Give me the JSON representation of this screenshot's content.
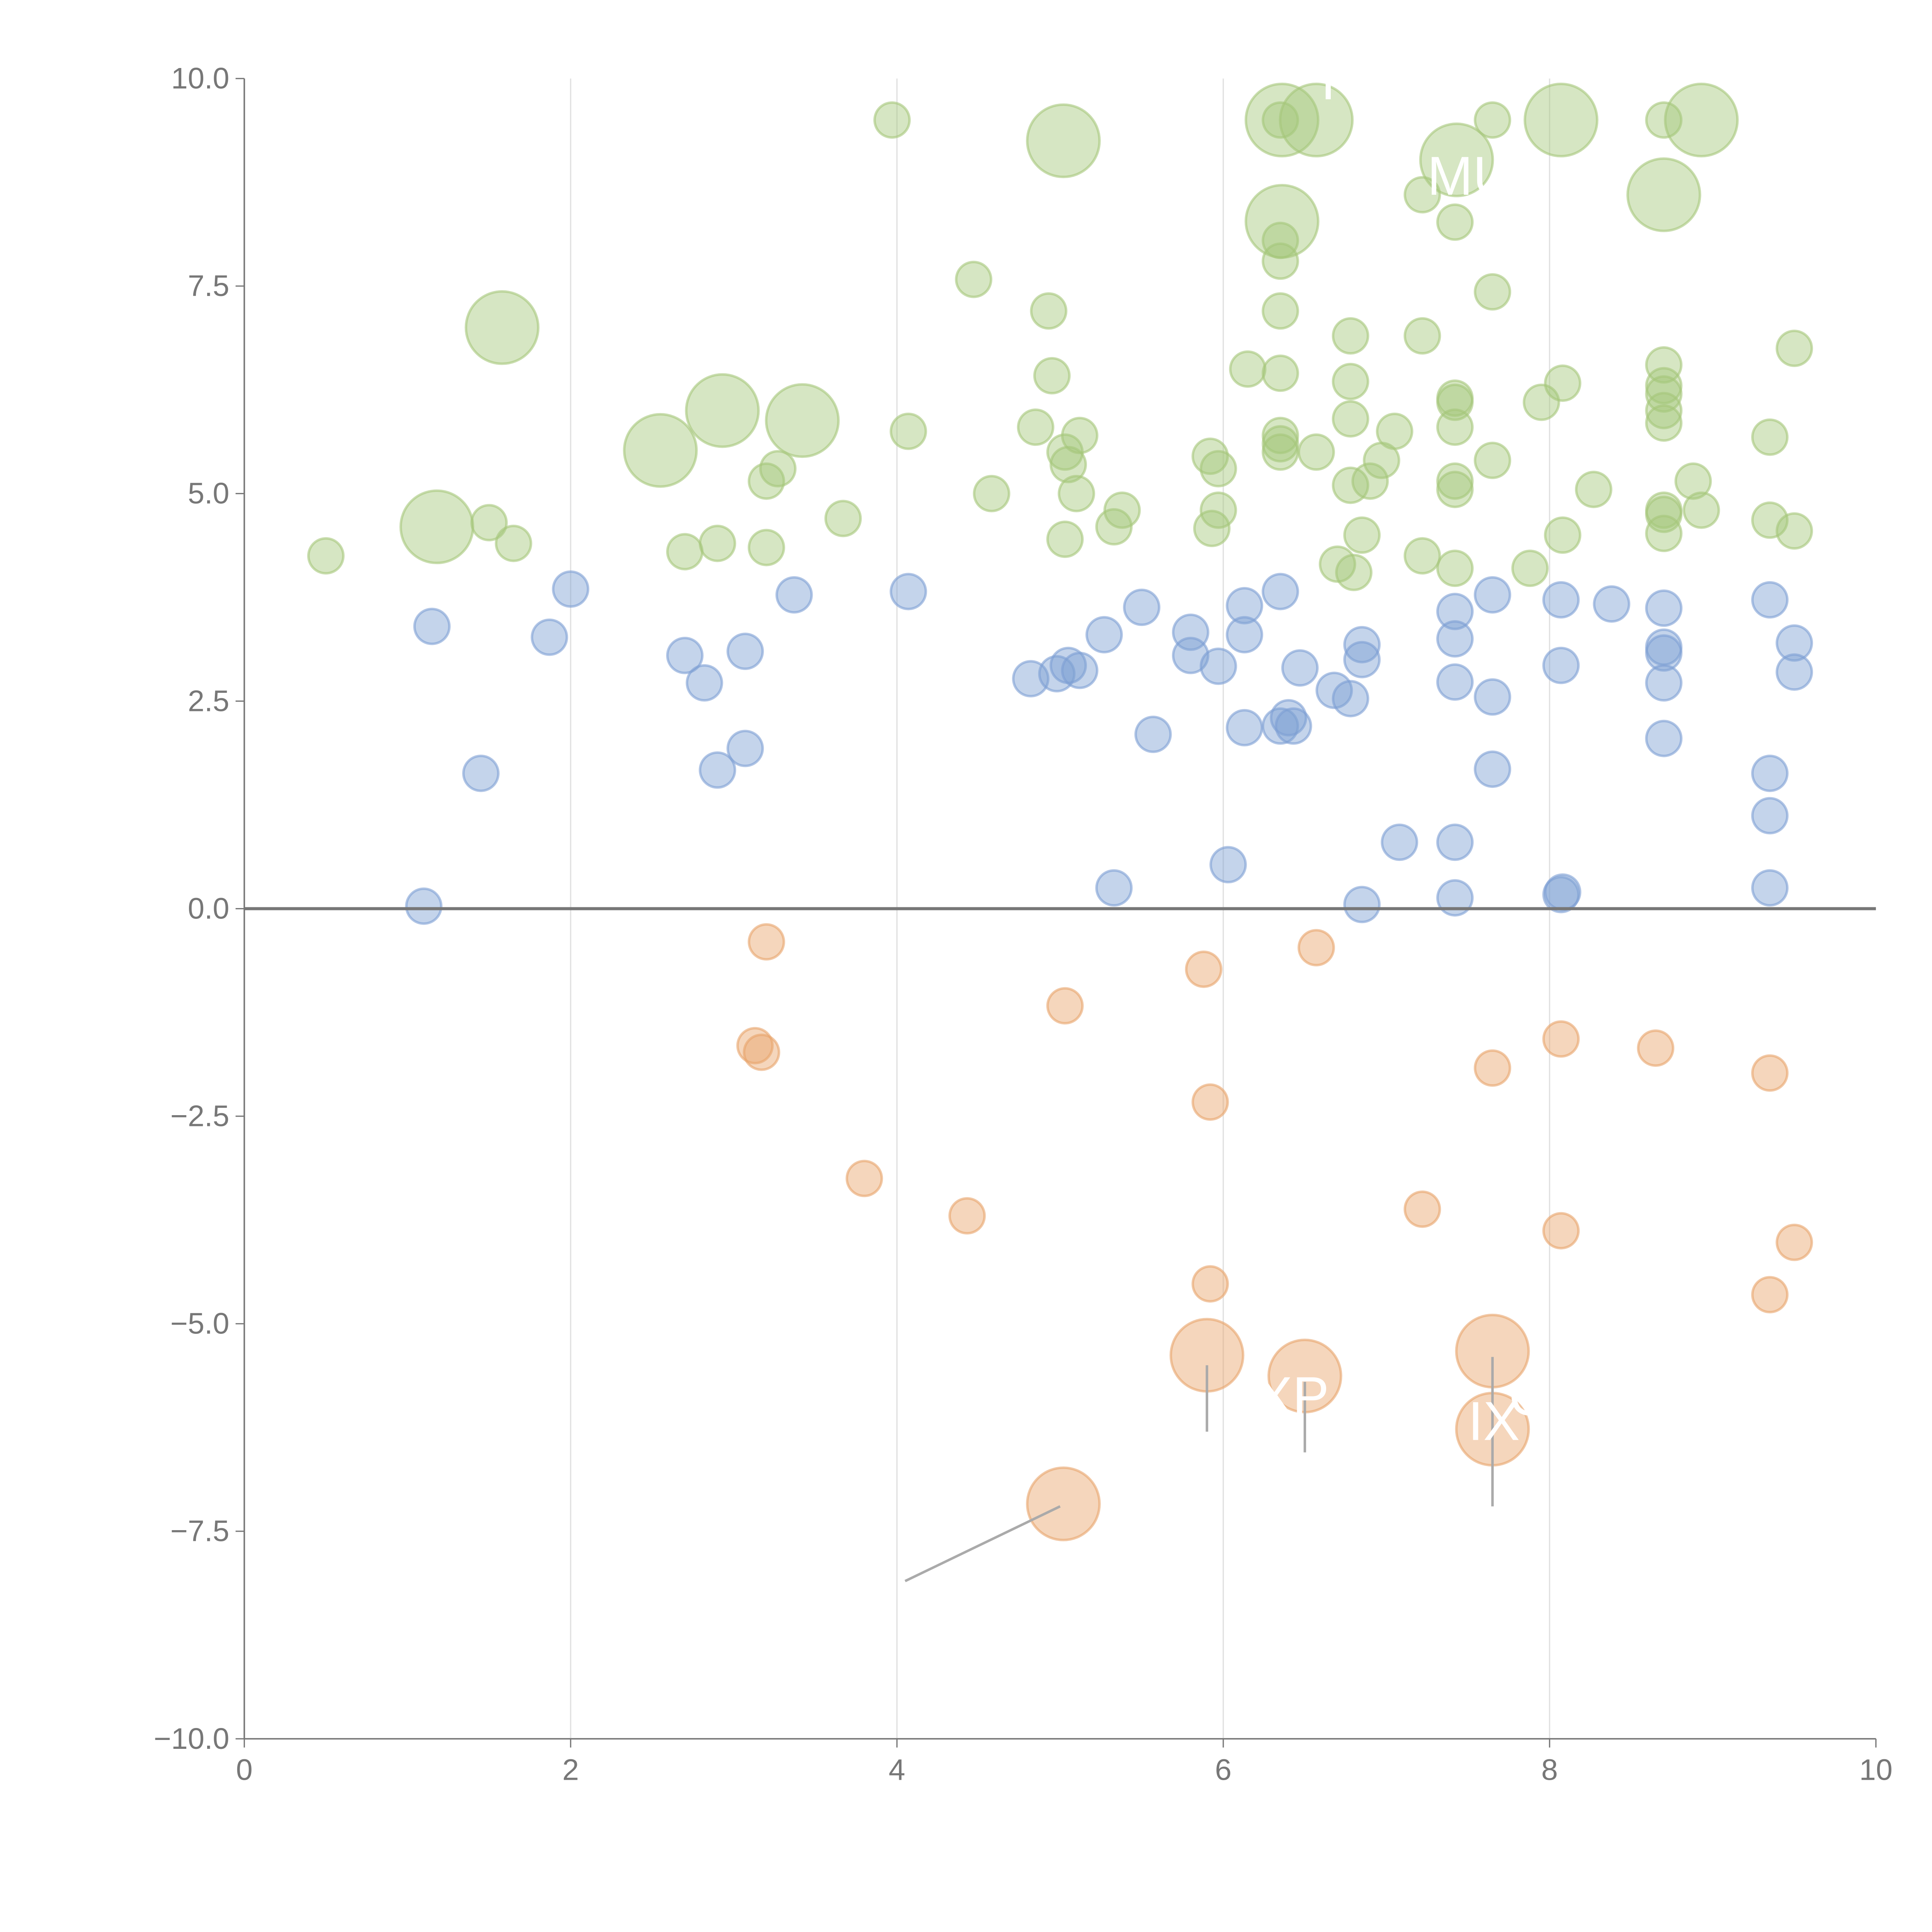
{
  "chart_data": {
    "type": "scatter",
    "title": "",
    "xlabel": "",
    "ylabel": "",
    "xlim": [
      0,
      10
    ],
    "ylim": [
      -10,
      10
    ],
    "x_ticks": [
      "0",
      "2",
      "4",
      "6",
      "8",
      "10"
    ],
    "y_ticks": [
      "10.0",
      "7.5",
      "5.0",
      "2.5",
      "0.0",
      "−2.5",
      "−5.0",
      "−7.5",
      "−10.0"
    ],
    "grid": "vertical",
    "legend": "none",
    "colors": {
      "high": "#a5c77a",
      "mid": "#7d9fd3",
      "low": "#e8a36a"
    },
    "series": [
      {
        "name": "high",
        "points": [
          [
            0.5,
            4.25,
            1
          ],
          [
            1.5,
            4.65,
            1
          ],
          [
            1.65,
            4.4,
            1
          ],
          [
            2.7,
            4.3,
            1
          ],
          [
            2.9,
            4.4,
            1
          ],
          [
            3.2,
            4.35,
            1
          ],
          [
            3.2,
            5.15,
            1
          ],
          [
            3.27,
            5.3,
            1
          ],
          [
            3.67,
            4.7,
            1
          ],
          [
            3.97,
            9.5,
            1
          ],
          [
            4.07,
            5.75,
            1
          ],
          [
            4.47,
            7.58,
            1
          ],
          [
            4.58,
            5.0,
            1
          ],
          [
            4.85,
            5.8,
            1
          ],
          [
            4.93,
            7.2,
            1
          ],
          [
            4.95,
            6.42,
            1
          ],
          [
            5.03,
            5.5,
            1
          ],
          [
            5.03,
            4.45,
            1
          ],
          [
            5.05,
            5.35,
            1
          ],
          [
            5.1,
            5.0,
            1
          ],
          [
            5.12,
            5.7,
            1
          ],
          [
            5.33,
            4.6,
            1
          ],
          [
            5.38,
            4.8,
            1
          ],
          [
            5.92,
            5.45,
            1
          ],
          [
            5.93,
            4.58,
            1
          ],
          [
            5.97,
            4.8,
            1
          ],
          [
            5.97,
            5.3,
            1
          ],
          [
            6.15,
            6.5,
            1
          ],
          [
            6.35,
            9.5,
            1
          ],
          [
            6.35,
            8.05,
            1
          ],
          [
            6.35,
            7.8,
            1
          ],
          [
            6.35,
            7.2,
            1
          ],
          [
            6.35,
            6.45,
            1
          ],
          [
            6.35,
            5.7,
            1
          ],
          [
            6.35,
            5.6,
            1
          ],
          [
            6.35,
            5.5,
            1
          ],
          [
            6.57,
            5.5,
            1
          ],
          [
            6.7,
            4.15,
            1
          ],
          [
            6.78,
            6.9,
            1
          ],
          [
            6.78,
            6.35,
            1
          ],
          [
            6.78,
            5.9,
            1
          ],
          [
            6.78,
            5.1,
            1
          ],
          [
            6.8,
            4.05,
            1
          ],
          [
            6.85,
            4.5,
            1
          ],
          [
            6.9,
            5.15,
            1
          ],
          [
            6.97,
            5.4,
            1
          ],
          [
            7.05,
            5.75,
            1
          ],
          [
            7.22,
            6.9,
            1
          ],
          [
            7.22,
            4.25,
            1
          ],
          [
            7.22,
            8.6,
            1
          ],
          [
            7.42,
            8.27,
            1
          ],
          [
            7.42,
            6.1,
            1
          ],
          [
            7.42,
            6.15,
            1
          ],
          [
            7.42,
            5.8,
            1
          ],
          [
            7.42,
            5.15,
            1
          ],
          [
            7.42,
            5.05,
            1
          ],
          [
            7.42,
            4.1,
            1
          ],
          [
            7.65,
            9.5,
            1
          ],
          [
            7.65,
            7.43,
            1
          ],
          [
            7.65,
            5.4,
            1
          ],
          [
            7.88,
            4.1,
            1
          ],
          [
            7.95,
            6.1,
            1
          ],
          [
            8.08,
            6.33,
            1
          ],
          [
            8.08,
            4.5,
            1
          ],
          [
            8.27,
            5.05,
            1
          ],
          [
            8.7,
            9.5,
            1
          ],
          [
            8.7,
            6.55,
            1
          ],
          [
            8.7,
            6.3,
            1
          ],
          [
            8.7,
            6.2,
            1
          ],
          [
            8.7,
            6.0,
            1
          ],
          [
            8.7,
            5.85,
            1
          ],
          [
            8.7,
            4.8,
            1
          ],
          [
            8.7,
            4.75,
            1
          ],
          [
            8.7,
            4.52,
            1
          ],
          [
            8.88,
            5.15,
            1
          ],
          [
            8.93,
            4.8,
            1
          ],
          [
            9.35,
            5.68,
            1
          ],
          [
            9.35,
            4.68,
            1
          ],
          [
            9.5,
            6.75,
            1
          ],
          [
            9.5,
            4.55,
            1
          ],
          [
            1.18,
            4.6,
            2
          ],
          [
            1.58,
            7.0,
            2
          ],
          [
            2.55,
            5.52,
            2
          ],
          [
            2.93,
            6.0,
            2
          ],
          [
            3.42,
            5.88,
            2
          ],
          [
            5.02,
            9.25,
            2
          ],
          [
            6.36,
            9.5,
            2
          ],
          [
            6.57,
            9.5,
            2
          ],
          [
            6.36,
            8.28,
            2
          ],
          [
            7.43,
            9.02,
            2
          ],
          [
            8.07,
            9.5,
            2
          ],
          [
            8.7,
            8.6,
            2
          ],
          [
            8.93,
            9.5,
            2
          ]
        ]
      },
      {
        "name": "mid",
        "points": [
          [
            1.1,
            0.03,
            1
          ],
          [
            1.15,
            3.4,
            1
          ],
          [
            1.45,
            1.63,
            1
          ],
          [
            1.87,
            3.27,
            1
          ],
          [
            2.0,
            3.85,
            1
          ],
          [
            2.7,
            3.05,
            1
          ],
          [
            2.82,
            2.72,
            1
          ],
          [
            2.9,
            1.67,
            1
          ],
          [
            3.07,
            3.1,
            1
          ],
          [
            3.07,
            1.93,
            1
          ],
          [
            3.37,
            3.78,
            1
          ],
          [
            4.07,
            3.82,
            1
          ],
          [
            4.82,
            2.77,
            1
          ],
          [
            4.98,
            2.83,
            1
          ],
          [
            5.05,
            2.93,
            1
          ],
          [
            5.12,
            2.87,
            1
          ],
          [
            5.27,
            3.3,
            1
          ],
          [
            5.33,
            0.25,
            1
          ],
          [
            5.5,
            3.63,
            1
          ],
          [
            5.57,
            2.1,
            1
          ],
          [
            5.8,
            3.33,
            1
          ],
          [
            5.8,
            3.05,
            1
          ],
          [
            5.97,
            2.92,
            1
          ],
          [
            6.03,
            0.53,
            1
          ],
          [
            6.13,
            3.65,
            1
          ],
          [
            6.13,
            3.3,
            1
          ],
          [
            6.13,
            2.18,
            1
          ],
          [
            6.35,
            3.82,
            1
          ],
          [
            6.35,
            2.2,
            1
          ],
          [
            6.4,
            2.3,
            1
          ],
          [
            6.43,
            2.2,
            1
          ],
          [
            6.47,
            2.9,
            1
          ],
          [
            6.68,
            2.63,
            1
          ],
          [
            6.78,
            2.53,
            1
          ],
          [
            6.85,
            3.18,
            1
          ],
          [
            6.85,
            3.0,
            1
          ],
          [
            6.85,
            0.05,
            1
          ],
          [
            7.08,
            0.8,
            1
          ],
          [
            7.42,
            3.58,
            1
          ],
          [
            7.42,
            3.25,
            1
          ],
          [
            7.42,
            2.73,
            1
          ],
          [
            7.42,
            0.8,
            1
          ],
          [
            7.42,
            0.13,
            1
          ],
          [
            7.65,
            3.78,
            1
          ],
          [
            7.65,
            2.55,
            1
          ],
          [
            7.65,
            1.68,
            1
          ],
          [
            8.07,
            3.72,
            1
          ],
          [
            8.07,
            2.93,
            1
          ],
          [
            8.07,
            0.17,
            1
          ],
          [
            8.08,
            0.2,
            1
          ],
          [
            8.38,
            3.67,
            1
          ],
          [
            8.7,
            3.62,
            1
          ],
          [
            8.7,
            3.15,
            1
          ],
          [
            8.7,
            3.08,
            1
          ],
          [
            8.7,
            2.72,
            1
          ],
          [
            8.7,
            2.05,
            1
          ],
          [
            9.35,
            3.72,
            1
          ],
          [
            9.35,
            1.63,
            1
          ],
          [
            9.35,
            1.12,
            1
          ],
          [
            9.35,
            0.25,
            1
          ],
          [
            9.5,
            3.2,
            1
          ],
          [
            9.5,
            2.85,
            1
          ]
        ]
      },
      {
        "name": "low",
        "points": [
          [
            3.2,
            -0.4,
            1
          ],
          [
            3.13,
            -1.65,
            1
          ],
          [
            3.17,
            -1.73,
            1
          ],
          [
            3.8,
            -3.25,
            1
          ],
          [
            4.43,
            -3.7,
            1
          ],
          [
            5.03,
            -1.17,
            1
          ],
          [
            5.88,
            -0.73,
            1
          ],
          [
            5.92,
            -2.33,
            1
          ],
          [
            5.92,
            -4.52,
            1
          ],
          [
            6.57,
            -0.47,
            1
          ],
          [
            7.22,
            -3.62,
            1
          ],
          [
            7.65,
            -1.92,
            1
          ],
          [
            8.07,
            -1.57,
            1
          ],
          [
            8.07,
            -3.88,
            1
          ],
          [
            8.65,
            -1.68,
            1
          ],
          [
            9.35,
            -1.98,
            1
          ],
          [
            9.35,
            -4.65,
            1
          ],
          [
            9.5,
            -4.02,
            1
          ],
          [
            5.02,
            -7.17,
            2
          ],
          [
            5.9,
            -5.38,
            2
          ],
          [
            6.5,
            -5.63,
            2
          ],
          [
            7.65,
            -5.33,
            2
          ],
          [
            7.65,
            -6.27,
            2
          ]
        ]
      }
    ],
    "annotations": [
      {
        "text": "P",
        "x": 6.6,
        "y": 9.75
      },
      {
        "text": "MU",
        "x": 7.25,
        "y": 8.6
      },
      {
        "text": "XP",
        "x": 6.2,
        "y": -6.1
      },
      {
        "text": "IX",
        "x": 7.5,
        "y": -6.4
      },
      {
        "text": "C",
        "x": 7.75,
        "y": -6.1
      }
    ]
  }
}
